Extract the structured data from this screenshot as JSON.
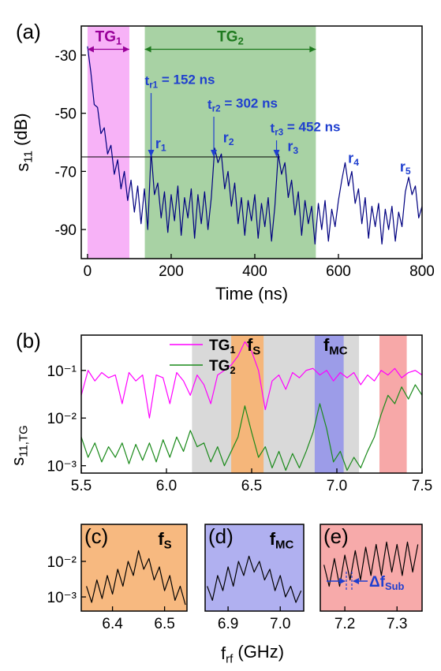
{
  "chart_data": [
    {
      "type": "line",
      "panel_label": "(a)",
      "xlabel": "Time (ns)",
      "ylabel": {
        "main": "s",
        "sub": "11",
        "rest": " (dB)"
      },
      "xlim": [
        -15,
        800
      ],
      "ylim": [
        -100,
        -20
      ],
      "xticks": [
        0,
        200,
        400,
        600,
        800
      ],
      "yticks": [
        -30,
        -50,
        -70,
        -90
      ],
      "bands": [
        {
          "x": [
            0,
            100
          ],
          "color": "#f7b2f7"
        },
        {
          "x": [
            137,
            546
          ],
          "color": "#a8d2a4"
        }
      ],
      "spans": [
        {
          "x": [
            0,
            100
          ],
          "y": -28,
          "color": "#990099",
          "label": {
            "main": "TG",
            "sub": "1"
          }
        },
        {
          "x": [
            137,
            546
          ],
          "y": -28,
          "color": "#1f7a1f",
          "label": {
            "main": "TG",
            "sub": "2"
          }
        }
      ],
      "hline": {
        "y": -65,
        "x": [
          -15,
          460
        ]
      },
      "annotation_color": "#1f3fcf",
      "markers": [
        {
          "x": 152,
          "label": {
            "main": "t",
            "sub": "r1",
            "rest": " = 152 ns"
          }
        },
        {
          "x": 302,
          "label": {
            "main": "t",
            "sub": "r2",
            "rest": " = 302 ns"
          }
        },
        {
          "x": 452,
          "label": {
            "main": "t",
            "sub": "r3",
            "rest": " = 452 ns"
          }
        }
      ],
      "peak_labels": [
        {
          "x": 162,
          "y": -62,
          "label": {
            "main": "r",
            "sub": "1"
          }
        },
        {
          "x": 324,
          "y": -60,
          "label": {
            "main": "r",
            "sub": "2"
          }
        },
        {
          "x": 478,
          "y": -63,
          "label": {
            "main": "r",
            "sub": "3"
          }
        },
        {
          "x": 623,
          "y": -67,
          "label": {
            "main": "r",
            "sub": "4"
          }
        },
        {
          "x": 747,
          "y": -70,
          "label": {
            "main": "r",
            "sub": "5"
          }
        }
      ],
      "series": [
        {
          "color": "#000080",
          "x": [
            0,
            8,
            16,
            24,
            32,
            40,
            48,
            56,
            64,
            72,
            80,
            88,
            96,
            104,
            112,
            120,
            128,
            136,
            144,
            152,
            160,
            168,
            176,
            184,
            192,
            200,
            208,
            216,
            224,
            232,
            240,
            248,
            256,
            264,
            272,
            280,
            288,
            296,
            304,
            312,
            320,
            328,
            336,
            344,
            352,
            360,
            368,
            376,
            384,
            392,
            400,
            408,
            416,
            424,
            432,
            440,
            448,
            456,
            464,
            472,
            480,
            488,
            496,
            504,
            512,
            520,
            528,
            536,
            544,
            552,
            560,
            568,
            576,
            584,
            592,
            600,
            608,
            616,
            624,
            632,
            640,
            648,
            656,
            664,
            672,
            680,
            688,
            696,
            704,
            712,
            720,
            728,
            736,
            744,
            752,
            760,
            768,
            776,
            784,
            792,
            800
          ],
          "values": [
            -27,
            -36,
            -47,
            -48,
            -57,
            -55,
            -64,
            -61,
            -71,
            -66,
            -76,
            -70,
            -80,
            -73,
            -84,
            -75,
            -88,
            -76,
            -90,
            -63,
            -78,
            -74,
            -86,
            -77,
            -91,
            -78,
            -87,
            -75,
            -92,
            -79,
            -86,
            -76,
            -93,
            -78,
            -88,
            -77,
            -90,
            -79,
            -62,
            -67,
            -64,
            -76,
            -70,
            -82,
            -74,
            -88,
            -79,
            -92,
            -80,
            -87,
            -78,
            -93,
            -81,
            -89,
            -79,
            -94,
            -82,
            -64,
            -71,
            -67,
            -79,
            -73,
            -85,
            -77,
            -92,
            -80,
            -88,
            -82,
            -95,
            -81,
            -90,
            -80,
            -94,
            -83,
            -89,
            -80,
            -73,
            -67,
            -75,
            -70,
            -81,
            -76,
            -88,
            -79,
            -93,
            -82,
            -89,
            -81,
            -95,
            -83,
            -90,
            -82,
            -94,
            -84,
            -89,
            -77,
            -72,
            -78,
            -75,
            -86,
            -82
          ]
        }
      ]
    },
    {
      "type": "line",
      "panel_label": "(b)",
      "ylabel": {
        "main": "s",
        "sub": "11,TG"
      },
      "log_y": true,
      "xlim": [
        5.5,
        7.5
      ],
      "ylim": [
        0.0007,
        0.55
      ],
      "xticks": [
        5.5,
        {
          "value": 6,
          "label": "6.0"
        },
        6.5,
        {
          "value": 7,
          "label": "7.0"
        },
        7.5
      ],
      "yticks": [
        {
          "value": 0.001,
          "label": "10⁻³"
        },
        {
          "value": 0.01,
          "label": "10⁻²"
        },
        {
          "value": 0.1,
          "label": "10⁻¹"
        }
      ],
      "bands": [
        {
          "x": [
            6.15,
            7.13
          ],
          "color": "#d9d9d9"
        },
        {
          "x": [
            6.38,
            6.57
          ],
          "color": "#f5b67a",
          "label": {
            "main": "f",
            "sub": "S"
          }
        },
        {
          "x": [
            6.87,
            7.04
          ],
          "color": "#9c9ce8",
          "label": {
            "main": "f",
            "sub": "MC"
          }
        },
        {
          "x": [
            7.25,
            7.41
          ],
          "color": "#f7a8a8"
        }
      ],
      "legend": "upper left",
      "series": [
        {
          "name": {
            "main": "TG",
            "sub": "1"
          },
          "color": "#ff00ff",
          "x": [
            5.5,
            5.54,
            5.58,
            5.62,
            5.66,
            5.7,
            5.74,
            5.78,
            5.82,
            5.86,
            5.9,
            5.94,
            5.98,
            6.02,
            6.06,
            6.1,
            6.14,
            6.18,
            6.22,
            6.26,
            6.3,
            6.34,
            6.38,
            6.42,
            6.46,
            6.5,
            6.54,
            6.58,
            6.62,
            6.66,
            6.7,
            6.74,
            6.78,
            6.82,
            6.86,
            6.9,
            6.94,
            6.98,
            7.02,
            7.06,
            7.1,
            7.14,
            7.18,
            7.22,
            7.26,
            7.3,
            7.34,
            7.38,
            7.42,
            7.46,
            7.5
          ],
          "values": [
            0.03,
            0.1,
            0.06,
            0.09,
            0.07,
            0.08,
            0.02,
            0.09,
            0.06,
            0.08,
            0.01,
            0.08,
            0.07,
            0.02,
            0.09,
            0.06,
            0.03,
            0.08,
            0.05,
            0.02,
            0.08,
            0.1,
            0.13,
            0.2,
            0.4,
            0.25,
            0.1,
            0.015,
            0.06,
            0.08,
            0.04,
            0.09,
            0.07,
            0.1,
            0.11,
            0.08,
            0.1,
            0.06,
            0.09,
            0.07,
            0.09,
            0.05,
            0.08,
            0.06,
            0.1,
            0.08,
            0.11,
            0.07,
            0.09,
            0.1,
            0.08
          ]
        },
        {
          "name": {
            "main": "TG",
            "sub": "2"
          },
          "color": "#1a8a1a",
          "x": [
            5.5,
            5.54,
            5.58,
            5.62,
            5.66,
            5.7,
            5.74,
            5.78,
            5.82,
            5.86,
            5.9,
            5.94,
            5.98,
            6.02,
            6.06,
            6.1,
            6.14,
            6.18,
            6.22,
            6.26,
            6.3,
            6.34,
            6.38,
            6.42,
            6.46,
            6.5,
            6.54,
            6.58,
            6.62,
            6.66,
            6.7,
            6.74,
            6.78,
            6.82,
            6.86,
            6.9,
            6.94,
            6.98,
            7.02,
            7.06,
            7.1,
            7.14,
            7.18,
            7.22,
            7.26,
            7.3,
            7.34,
            7.38,
            7.42,
            7.46,
            7.5
          ],
          "values": [
            0.004,
            0.0015,
            0.003,
            0.0012,
            0.0025,
            0.0015,
            0.003,
            0.0011,
            0.0028,
            0.0013,
            0.003,
            0.0012,
            0.0035,
            0.0015,
            0.004,
            0.002,
            0.0055,
            0.0025,
            0.003,
            0.0012,
            0.0025,
            0.001,
            0.002,
            0.004,
            0.018,
            0.005,
            0.0015,
            0.0025,
            0.0009,
            0.002,
            0.0008,
            0.0018,
            0.0009,
            0.002,
            0.005,
            0.02,
            0.006,
            0.0012,
            0.002,
            0.0008,
            0.0015,
            0.0009,
            0.002,
            0.004,
            0.012,
            0.03,
            0.02,
            0.045,
            0.025,
            0.05,
            0.03
          ]
        }
      ]
    },
    {
      "type": "line",
      "panel_label": "(c)",
      "background": "#f7b980",
      "band_label": {
        "main": "f",
        "sub": "S"
      },
      "log_y": true,
      "xlim": [
        6.34,
        6.543
      ],
      "ylim": [
        0.0004,
        0.11
      ],
      "xticks": [
        6.4,
        6.5
      ],
      "yticks": [
        {
          "value": 0.001,
          "label": "10⁻³"
        },
        {
          "value": 0.01,
          "label": "10⁻²"
        }
      ],
      "series": [
        {
          "color": "#000000",
          "x": [
            6.35,
            6.36,
            6.37,
            6.38,
            6.39,
            6.4,
            6.41,
            6.42,
            6.43,
            6.44,
            6.45,
            6.46,
            6.47,
            6.48,
            6.49,
            6.5,
            6.51,
            6.52,
            6.53,
            6.54
          ],
          "values": [
            0.002,
            0.0007,
            0.003,
            0.0009,
            0.004,
            0.0012,
            0.006,
            0.002,
            0.01,
            0.004,
            0.02,
            0.006,
            0.012,
            0.003,
            0.007,
            0.0015,
            0.004,
            0.0008,
            0.002,
            0.0006
          ]
        }
      ]
    },
    {
      "type": "line",
      "panel_label": "(d)",
      "background": "#b0b0f0",
      "band_label": {
        "main": "f",
        "sub": "MC"
      },
      "log_y": true,
      "xlim": [
        6.856,
        7.045
      ],
      "ylim": [
        0.0004,
        0.11
      ],
      "xticks": [
        6.9,
        {
          "value": 7,
          "label": "7.0"
        }
      ],
      "series": [
        {
          "color": "#000000",
          "x": [
            6.86,
            6.87,
            6.88,
            6.89,
            6.9,
            6.91,
            6.92,
            6.93,
            6.94,
            6.95,
            6.96,
            6.97,
            6.98,
            6.99,
            7.0,
            7.01,
            7.02,
            7.03,
            7.04
          ],
          "values": [
            0.002,
            0.0008,
            0.004,
            0.0015,
            0.007,
            0.002,
            0.01,
            0.004,
            0.014,
            0.005,
            0.01,
            0.003,
            0.006,
            0.0015,
            0.004,
            0.001,
            0.002,
            0.0007,
            0.0015
          ]
        }
      ]
    },
    {
      "type": "line",
      "panel_label": "(e)",
      "background": "#f7aaaa",
      "annotation": {
        "main": "Δf",
        "sub": "Sub"
      },
      "annotation_color": "#1f3fcf",
      "log_y": true,
      "xlim": [
        7.153,
        7.348
      ],
      "ylim": [
        0.0004,
        0.11
      ],
      "xticks": [
        7.2,
        7.3
      ],
      "series": [
        {
          "color": "#000000",
          "x": [
            7.16,
            7.17,
            7.18,
            7.19,
            7.2,
            7.21,
            7.22,
            7.23,
            7.24,
            7.25,
            7.26,
            7.27,
            7.28,
            7.29,
            7.3,
            7.31,
            7.32,
            7.33,
            7.34
          ],
          "values": [
            0.008,
            0.002,
            0.012,
            0.002,
            0.015,
            0.003,
            0.02,
            0.003,
            0.025,
            0.004,
            0.03,
            0.004,
            0.035,
            0.005,
            0.03,
            0.004,
            0.035,
            0.005,
            0.03
          ]
        }
      ]
    }
  ],
  "shared_xlabel": {
    "main": "f",
    "sub": "rf",
    "rest": " (GHz)"
  }
}
